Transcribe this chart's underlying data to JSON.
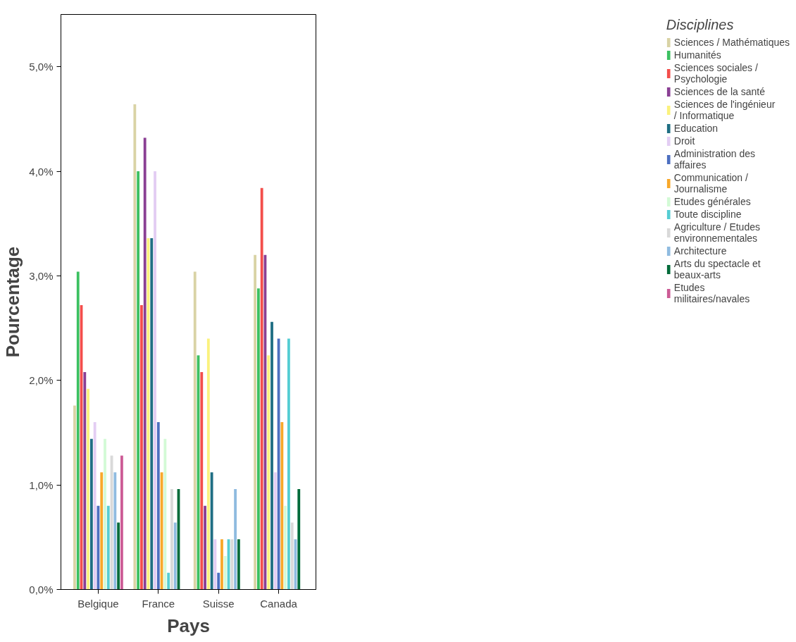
{
  "chart_data": {
    "type": "bar",
    "xlabel": "Pays",
    "ylabel": "Pourcentage",
    "legend_title": "Disciplines",
    "legend": "right",
    "grid": false,
    "categories": [
      "Belgique",
      "France",
      "Suisse",
      "Canada"
    ],
    "ylim": [
      0,
      5.5
    ],
    "yticks": [
      {
        "value": 0,
        "label": "0,0%"
      },
      {
        "value": 1,
        "label": "1,0%"
      },
      {
        "value": 2,
        "label": "2,0%"
      },
      {
        "value": 3,
        "label": "3,0%"
      },
      {
        "value": 4,
        "label": "4,0%"
      },
      {
        "value": 5,
        "label": "5,0%"
      }
    ],
    "series": [
      {
        "name": "Sciences / Mathématiques",
        "color": "#d9d3a5",
        "values": [
          1.76,
          4.64,
          3.04,
          3.2
        ]
      },
      {
        "name": "Humanités",
        "color": "#3cc061",
        "values": [
          3.04,
          4.0,
          2.24,
          2.88
        ]
      },
      {
        "name": "Sciences sociales / Psychologie",
        "color": "#f34e4b",
        "values": [
          2.72,
          2.72,
          2.08,
          3.84
        ]
      },
      {
        "name": "Sciences de la santé",
        "color": "#8a3f94",
        "values": [
          2.08,
          4.32,
          0.8,
          3.2
        ]
      },
      {
        "name": "Sciences de l'ingénieur / Informatique",
        "color": "#fbf27d",
        "values": [
          1.92,
          3.36,
          2.4,
          2.24
        ]
      },
      {
        "name": "Education",
        "color": "#1f6e83",
        "values": [
          1.44,
          3.36,
          1.12,
          2.56
        ]
      },
      {
        "name": "Droit",
        "color": "#e3cdf3",
        "values": [
          1.6,
          4.0,
          0.48,
          1.12
        ]
      },
      {
        "name": "Administration des affaires",
        "color": "#4d6fc0",
        "values": [
          0.8,
          1.6,
          0.16,
          2.4
        ]
      },
      {
        "name": "Communication / Journalisme",
        "color": "#f8a82a",
        "values": [
          1.12,
          1.12,
          0.48,
          1.6
        ]
      },
      {
        "name": "Etudes générales",
        "color": "#d3fad6",
        "values": [
          1.44,
          1.44,
          0.32,
          0.8
        ]
      },
      {
        "name": "Toute discipline",
        "color": "#55cdd3",
        "values": [
          0.8,
          0.16,
          0.48,
          2.4
        ]
      },
      {
        "name": "Agriculture / Etudes environnementales",
        "color": "#d9d9d9",
        "values": [
          1.28,
          0.96,
          0.48,
          0.64
        ]
      },
      {
        "name": "Architecture",
        "color": "#8fbbe0",
        "values": [
          1.12,
          0.64,
          0.96,
          0.48
        ]
      },
      {
        "name": "Arts du spectacle et beaux-arts",
        "color": "#036b3a",
        "values": [
          0.64,
          0.96,
          0.48,
          0.96
        ]
      },
      {
        "name": "Etudes militaires/navales",
        "color": "#cc5b95",
        "values": [
          1.28,
          null,
          null,
          null
        ]
      }
    ]
  }
}
